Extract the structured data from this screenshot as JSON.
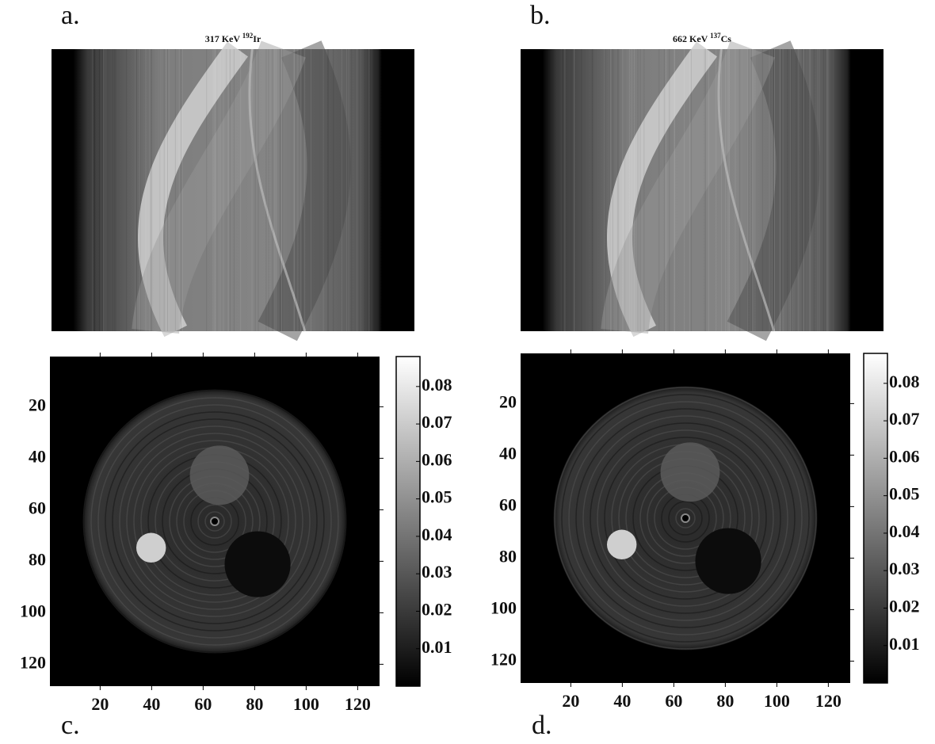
{
  "panels": [
    {
      "label": "a.",
      "title": {
        "energy": "317 KeV",
        "mass_number": "192",
        "element": "Ir"
      }
    },
    {
      "label": "b.",
      "title": {
        "energy": "662 KeV",
        "mass_number": "137",
        "element": "Cs"
      }
    },
    {
      "label": "c.",
      "xlim": [
        0.5,
        128.5
      ],
      "ylim": [
        0.5,
        128.5
      ],
      "xticks": [
        20,
        40,
        60,
        80,
        100,
        120
      ],
      "yticks": [
        20,
        40,
        60,
        80,
        100,
        120
      ],
      "colorbar": {
        "lim": [
          0,
          0.088
        ],
        "ticks": [
          0.01,
          0.02,
          0.03,
          0.04,
          0.05,
          0.06,
          0.07,
          0.08
        ]
      }
    },
    {
      "label": "d.",
      "xlim": [
        0.5,
        128.5
      ],
      "ylim": [
        0.5,
        128.5
      ],
      "xticks": [
        20,
        40,
        60,
        80,
        100,
        120
      ],
      "yticks": [
        20,
        40,
        60,
        80,
        100,
        120
      ],
      "colorbar": {
        "lim": [
          0,
          0.088
        ],
        "ticks": [
          0.01,
          0.02,
          0.03,
          0.04,
          0.05,
          0.06,
          0.07,
          0.08
        ]
      }
    }
  ]
}
